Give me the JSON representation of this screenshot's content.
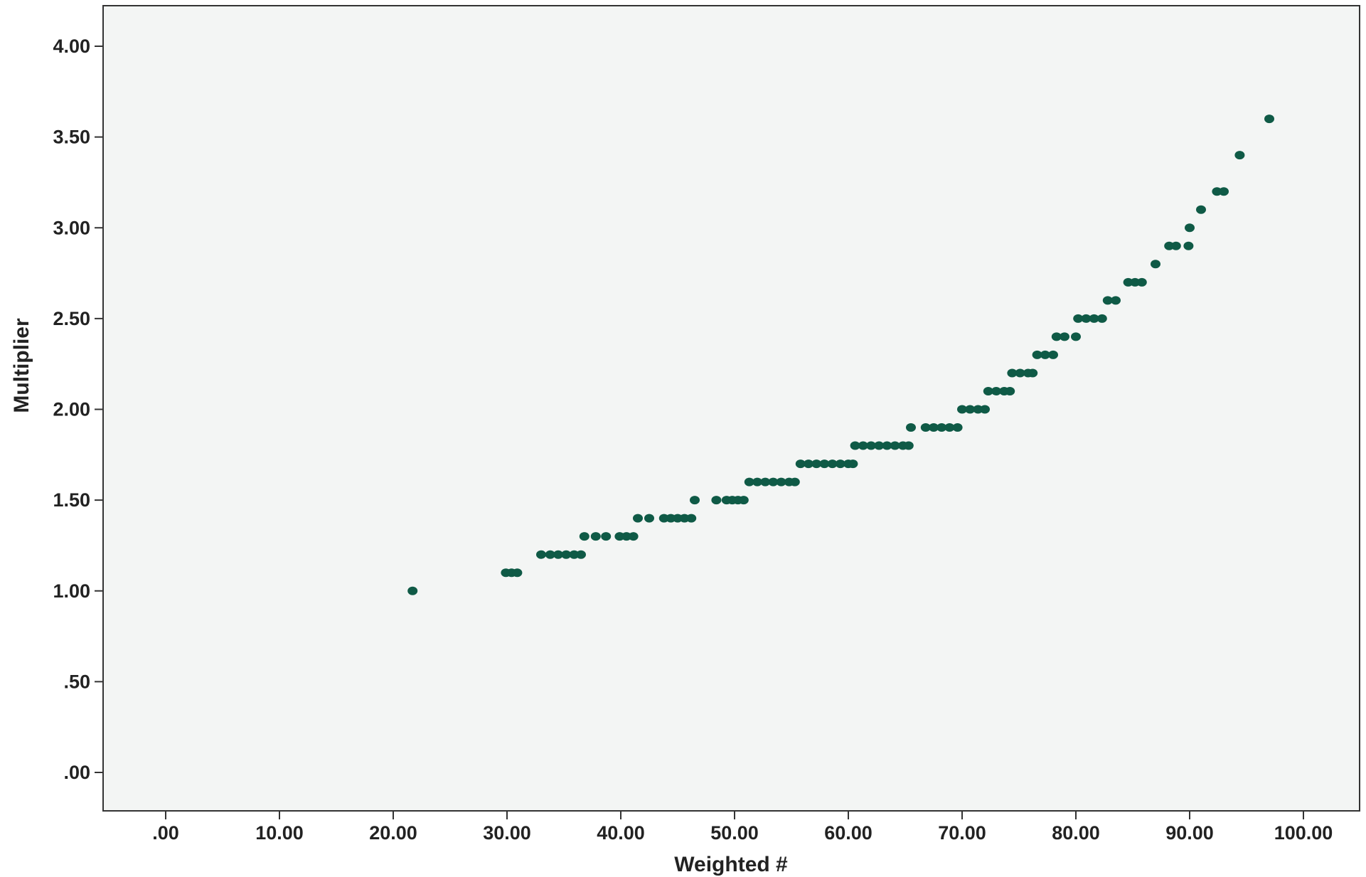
{
  "chart_data": {
    "type": "scatter",
    "title": "",
    "xlabel": "Weighted #",
    "ylabel": "Multiplier",
    "xlim": [
      -5,
      106
    ],
    "ylim": [
      -0.2,
      4.2
    ],
    "xticks": [
      0,
      10,
      20,
      30,
      40,
      50,
      60,
      70,
      80,
      90,
      100
    ],
    "xtick_labels": [
      ".00",
      "10.00",
      "20.00",
      "30.00",
      "40.00",
      "50.00",
      "60.00",
      "70.00",
      "80.00",
      "90.00",
      "100.00"
    ],
    "yticks": [
      0,
      0.5,
      1,
      1.5,
      2,
      2.5,
      3,
      3.5,
      4
    ],
    "ytick_labels": [
      ".00",
      ".50",
      "1.00",
      "1.50",
      "2.00",
      "2.50",
      "3.00",
      "3.50",
      "4.00"
    ],
    "grid": false,
    "colors": {
      "marker": "#0f5a46",
      "plot_bg": "#f3f5f4",
      "axis": "#333333"
    },
    "points": [
      [
        21.7,
        1.0
      ],
      [
        29.9,
        1.1
      ],
      [
        30.4,
        1.1
      ],
      [
        30.9,
        1.1
      ],
      [
        33.0,
        1.2
      ],
      [
        33.8,
        1.2
      ],
      [
        34.5,
        1.2
      ],
      [
        35.2,
        1.2
      ],
      [
        35.9,
        1.2
      ],
      [
        36.5,
        1.2
      ],
      [
        36.8,
        1.3
      ],
      [
        37.8,
        1.3
      ],
      [
        38.7,
        1.3
      ],
      [
        39.9,
        1.3
      ],
      [
        40.5,
        1.3
      ],
      [
        41.1,
        1.3
      ],
      [
        41.5,
        1.4
      ],
      [
        42.5,
        1.4
      ],
      [
        43.8,
        1.4
      ],
      [
        44.4,
        1.4
      ],
      [
        45.0,
        1.4
      ],
      [
        45.6,
        1.4
      ],
      [
        46.2,
        1.4
      ],
      [
        46.5,
        1.5
      ],
      [
        48.4,
        1.5
      ],
      [
        49.3,
        1.5
      ],
      [
        49.8,
        1.5
      ],
      [
        50.3,
        1.5
      ],
      [
        50.8,
        1.5
      ],
      [
        51.3,
        1.6
      ],
      [
        52.0,
        1.6
      ],
      [
        52.7,
        1.6
      ],
      [
        53.4,
        1.6
      ],
      [
        54.1,
        1.6
      ],
      [
        54.8,
        1.6
      ],
      [
        55.3,
        1.6
      ],
      [
        55.8,
        1.7
      ],
      [
        56.5,
        1.7
      ],
      [
        57.2,
        1.7
      ],
      [
        57.9,
        1.7
      ],
      [
        58.6,
        1.7
      ],
      [
        59.3,
        1.7
      ],
      [
        60.0,
        1.7
      ],
      [
        60.4,
        1.7
      ],
      [
        60.6,
        1.8
      ],
      [
        61.3,
        1.8
      ],
      [
        62.0,
        1.8
      ],
      [
        62.7,
        1.8
      ],
      [
        63.4,
        1.8
      ],
      [
        64.1,
        1.8
      ],
      [
        64.8,
        1.8
      ],
      [
        65.3,
        1.8
      ],
      [
        65.5,
        1.9
      ],
      [
        66.8,
        1.9
      ],
      [
        67.5,
        1.9
      ],
      [
        68.2,
        1.9
      ],
      [
        68.9,
        1.9
      ],
      [
        69.6,
        1.9
      ],
      [
        70.0,
        2.0
      ],
      [
        70.7,
        2.0
      ],
      [
        71.4,
        2.0
      ],
      [
        72.0,
        2.0
      ],
      [
        72.3,
        2.1
      ],
      [
        73.0,
        2.1
      ],
      [
        73.7,
        2.1
      ],
      [
        74.2,
        2.1
      ],
      [
        74.4,
        2.2
      ],
      [
        75.1,
        2.2
      ],
      [
        75.8,
        2.2
      ],
      [
        76.2,
        2.2
      ],
      [
        76.6,
        2.3
      ],
      [
        77.3,
        2.3
      ],
      [
        78.0,
        2.3
      ],
      [
        78.3,
        2.4
      ],
      [
        79.0,
        2.4
      ],
      [
        80.0,
        2.4
      ],
      [
        80.2,
        2.5
      ],
      [
        80.9,
        2.5
      ],
      [
        81.6,
        2.5
      ],
      [
        82.3,
        2.5
      ],
      [
        82.8,
        2.6
      ],
      [
        83.5,
        2.6
      ],
      [
        84.6,
        2.7
      ],
      [
        85.2,
        2.7
      ],
      [
        85.8,
        2.7
      ],
      [
        87.0,
        2.8
      ],
      [
        88.2,
        2.9
      ],
      [
        88.8,
        2.9
      ],
      [
        89.9,
        2.9
      ],
      [
        90.0,
        3.0
      ],
      [
        91.0,
        3.1
      ],
      [
        92.4,
        3.2
      ],
      [
        93.0,
        3.2
      ],
      [
        94.4,
        3.4
      ],
      [
        97.0,
        3.6
      ]
    ]
  }
}
